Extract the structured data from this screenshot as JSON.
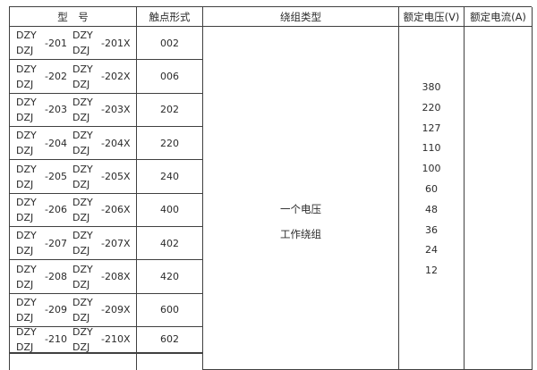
{
  "table": {
    "headers": {
      "model": "型　号",
      "contact_form": "触点形式",
      "winding_type": "绕组类型",
      "rated_voltage": "额定电压(V)",
      "rated_current": "额定电流(A)"
    },
    "rows": [
      {
        "p1": "DZY",
        "p2": "DZJ",
        "num": "-201",
        "p3": "DZY",
        "p4": "DZJ",
        "numx": "-201X",
        "contact": "002"
      },
      {
        "p1": "DZY",
        "p2": "DZJ",
        "num": "-202",
        "p3": "DZY",
        "p4": "DZJ",
        "numx": "-202X",
        "contact": "006"
      },
      {
        "p1": "DZY",
        "p2": "DZJ",
        "num": "-203",
        "p3": "DZY",
        "p4": "DZJ",
        "numx": "-203X",
        "contact": "202"
      },
      {
        "p1": "DZY",
        "p2": "DZJ",
        "num": "-204",
        "p3": "DZY",
        "p4": "DZJ",
        "numx": "-204X",
        "contact": "220"
      },
      {
        "p1": "DZY",
        "p2": "DZJ",
        "num": "-205",
        "p3": "DZY",
        "p4": "DZJ",
        "numx": "-205X",
        "contact": "240"
      },
      {
        "p1": "DZY",
        "p2": "DZJ",
        "num": "-206",
        "p3": "DZY",
        "p4": "DZJ",
        "numx": "-206X",
        "contact": "400"
      },
      {
        "p1": "DZY",
        "p2": "DZJ",
        "num": "-207",
        "p3": "DZY",
        "p4": "DZJ",
        "numx": "-207X",
        "contact": "402"
      },
      {
        "p1": "DZY",
        "p2": "DZJ",
        "num": "-208",
        "p3": "DZY",
        "p4": "DZJ",
        "numx": "-208X",
        "contact": "420"
      },
      {
        "p1": "DZY",
        "p2": "DZJ",
        "num": "-209",
        "p3": "DZY",
        "p4": "DZJ",
        "numx": "-209X",
        "contact": "600"
      },
      {
        "p1": "DZY",
        "p2": "DZJ",
        "num": "-210",
        "p3": "DZY",
        "p4": "DZJ",
        "numx": "-210X",
        "contact": "602"
      }
    ],
    "winding": {
      "line1": "一个电压",
      "line2": "工作绕组"
    },
    "voltages": [
      "380",
      "220",
      "127",
      "110",
      "100",
      "60",
      "48",
      "36",
      "24",
      "12"
    ],
    "current_values": []
  }
}
